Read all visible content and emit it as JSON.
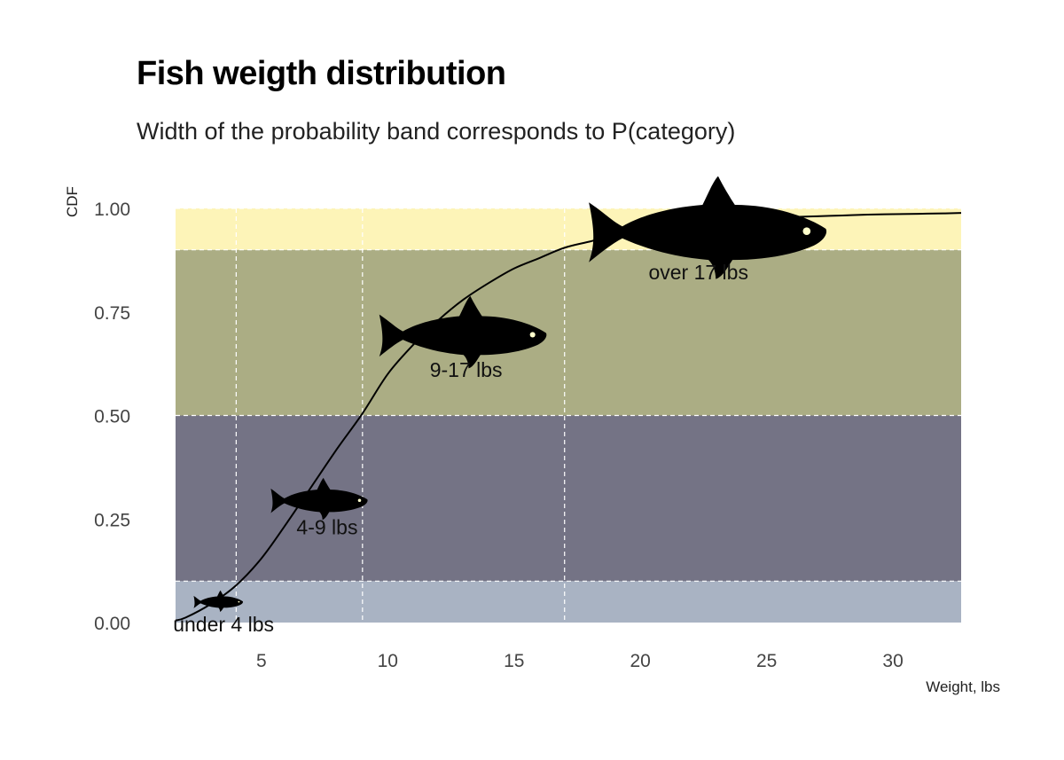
{
  "chart_data": {
    "type": "line",
    "title": "Fish weigth distribution",
    "subtitle": "Width of the probability band corresponds to P(category)",
    "xlabel": "Weight, lbs",
    "ylabel": "CDF",
    "xlim": [
      1.6,
      32.7
    ],
    "ylim": [
      0,
      1
    ],
    "x_ticks": [
      5,
      10,
      15,
      20,
      25,
      30
    ],
    "y_ticks": [
      "0.00",
      "0.25",
      "0.50",
      "0.75",
      "1.00"
    ],
    "x_vlines": [
      4,
      9,
      17
    ],
    "bands": [
      {
        "label": "under 4 lbs",
        "ymin": 0.0,
        "ymax": 0.1,
        "color": "#a9b3c3",
        "fish_x": 3.3,
        "fish_y": 0.05,
        "fish_scale": 0.28,
        "label_x": 3.5,
        "label_y": 0.0
      },
      {
        "label": "4-9 lbs",
        "ymin": 0.1,
        "ymax": 0.5,
        "color": "#747385",
        "fish_x": 7.3,
        "fish_y": 0.295,
        "fish_scale": 0.55,
        "label_x": 7.6,
        "label_y": 0.235
      },
      {
        "label": "9-17 lbs",
        "ymin": 0.5,
        "ymax": 0.9,
        "color": "#abad84",
        "fish_x": 13.0,
        "fish_y": 0.695,
        "fish_scale": 0.95,
        "label_x": 13.1,
        "label_y": 0.615
      },
      {
        "label": "over 17 lbs",
        "ymin": 0.9,
        "ymax": 1.0,
        "color": "#fdf4b8",
        "fish_x": 22.7,
        "fish_y": 0.945,
        "fish_scale": 1.35,
        "label_x": 22.3,
        "label_y": 0.85
      }
    ],
    "series": [
      {
        "x": [
          1.6,
          2,
          3,
          4,
          5,
          6,
          7,
          8,
          9,
          10,
          11,
          12,
          13,
          14,
          15,
          16,
          17,
          18,
          19,
          20,
          21,
          22,
          23,
          24,
          25,
          26,
          27,
          28,
          29,
          30,
          31,
          32,
          32.7
        ],
        "y": [
          0.005,
          0.012,
          0.045,
          0.09,
          0.155,
          0.24,
          0.33,
          0.42,
          0.505,
          0.6,
          0.67,
          0.73,
          0.78,
          0.82,
          0.855,
          0.88,
          0.905,
          0.92,
          0.935,
          0.945,
          0.955,
          0.962,
          0.968,
          0.972,
          0.976,
          0.979,
          0.981,
          0.983,
          0.985,
          0.986,
          0.987,
          0.988,
          0.989
        ]
      }
    ],
    "grid": true,
    "grid_style": "dashed white"
  }
}
